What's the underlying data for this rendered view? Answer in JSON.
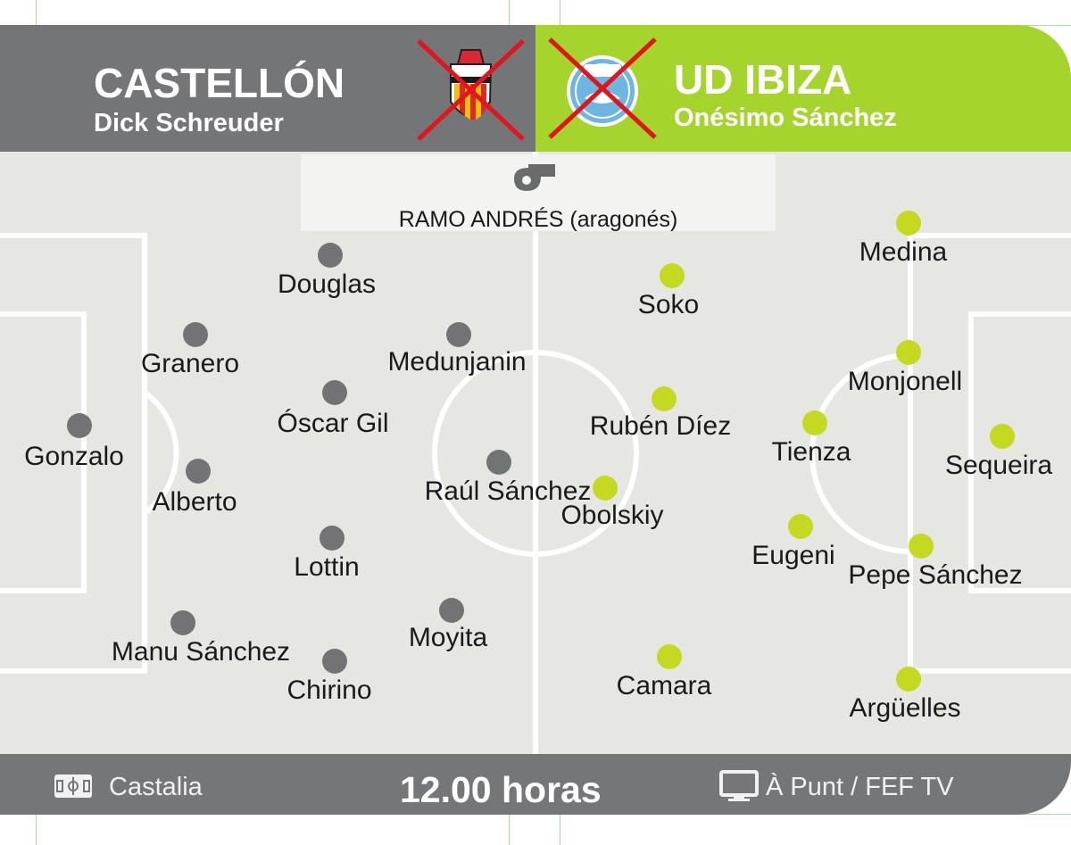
{
  "home": {
    "name": "CASTELLÓN",
    "coach": "Dick Schreuder",
    "color": "#727374",
    "players": [
      {
        "name": "Gonzalo"
      },
      {
        "name": "Granero"
      },
      {
        "name": "Alberto"
      },
      {
        "name": "Manu Sánchez"
      },
      {
        "name": "Douglas"
      },
      {
        "name": "Óscar Gil"
      },
      {
        "name": "Lottin"
      },
      {
        "name": "Chirino"
      },
      {
        "name": "Medunjanin"
      },
      {
        "name": "Raúl Sánchez"
      },
      {
        "name": "Moyita"
      }
    ]
  },
  "away": {
    "name": "UD IBIZA",
    "coach": "Onésimo Sánchez",
    "color": "#c5d921",
    "players": [
      {
        "name": "Medina"
      },
      {
        "name": "Soko"
      },
      {
        "name": "Rubén Díez"
      },
      {
        "name": "Obolskiy"
      },
      {
        "name": "Camara"
      },
      {
        "name": "Monjonell"
      },
      {
        "name": "Tienza"
      },
      {
        "name": "Eugeni"
      },
      {
        "name": "Pepe Sánchez"
      },
      {
        "name": "Sequeira"
      },
      {
        "name": "Argüelles"
      }
    ]
  },
  "referee": {
    "name": "RAMO ANDRÉS (aragonés)",
    "icon": "whistle-icon"
  },
  "footer": {
    "stadium": "Castalia",
    "stadium_icon": "stadium-icon",
    "kickoff": "12.00 horas",
    "tv": "À Punt / FEF TV",
    "tv_icon": "tv-icon"
  }
}
